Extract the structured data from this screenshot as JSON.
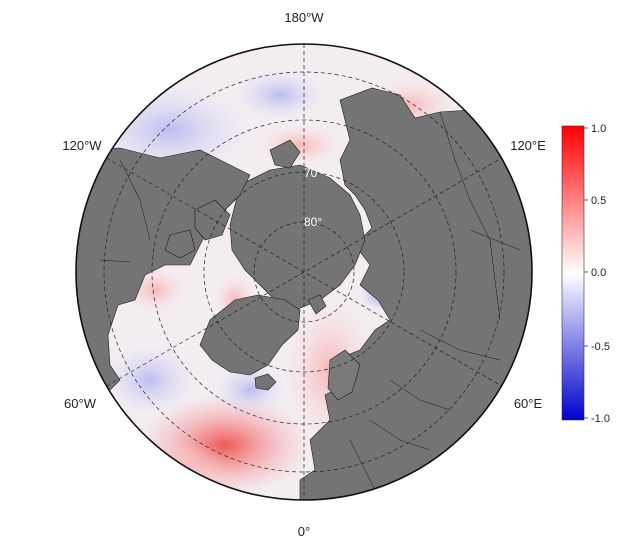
{
  "map": {
    "lon_labels": {
      "top": "180°W",
      "top_left": "120°W",
      "top_right": "120°E",
      "bottom_left": "60°W",
      "bottom_right": "60°E",
      "bottom": "0°"
    },
    "lat_labels": {
      "lat70": "70°",
      "lat80": "80°"
    }
  },
  "colorbar": {
    "ticks": [
      "1.0",
      "0.5",
      "0.0",
      "-0.5",
      "-1.0"
    ],
    "colors": {
      "high": "#ff0000",
      "mid": "#ffffff",
      "low": "#0000cc"
    }
  },
  "colors": {
    "land": "#747474",
    "border": "#000000",
    "grid": "#222222"
  }
}
